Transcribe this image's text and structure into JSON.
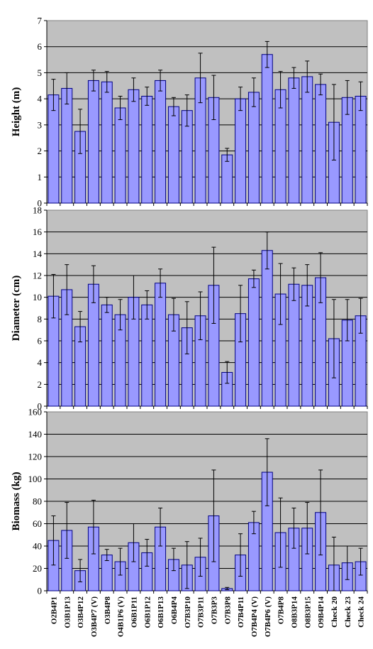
{
  "chart_data": {
    "type": "bar",
    "categories": [
      "O2B4P1",
      "O3B1P13",
      "O3B4P12",
      "O3B4P7 (V)",
      "O3B4P8",
      "O4B1P6 (V)",
      "O6B1P11",
      "O6B1P12",
      "O6B1P13",
      "O6B4P4",
      "O7B3P10",
      "O7B3P11",
      "O7B3P3",
      "O7B3P8",
      "O7B4P11",
      "O7B4P4 (V)",
      "O7B4P6 (V)",
      "O7B4P8",
      "O8B3P14",
      "O8B3P15",
      "O9B4P14",
      "Check 20",
      "Check 23",
      "Check 24"
    ],
    "panels": [
      {
        "ylabel": "Height (m)",
        "ylim": [
          0,
          7
        ],
        "yticks": [
          "0",
          "1",
          "2",
          "3",
          "4",
          "5",
          "6",
          "7"
        ],
        "grid": true,
        "values": [
          4.15,
          4.4,
          2.75,
          4.7,
          4.65,
          3.65,
          4.35,
          4.1,
          4.7,
          3.7,
          3.55,
          4.8,
          4.05,
          1.85,
          4.0,
          4.25,
          5.7,
          4.35,
          4.8,
          4.85,
          4.55,
          3.1,
          4.05,
          4.1
        ],
        "errors": [
          0.6,
          0.6,
          0.85,
          0.4,
          0.4,
          0.45,
          0.45,
          0.35,
          0.4,
          0.35,
          0.6,
          0.95,
          0.85,
          0.25,
          0.45,
          0.55,
          0.5,
          0.7,
          0.4,
          0.6,
          0.4,
          1.45,
          0.65,
          0.55
        ]
      },
      {
        "ylabel": "Diameter (cm)",
        "ylim": [
          0,
          18
        ],
        "yticks": [
          "0",
          "2",
          "4",
          "6",
          "8",
          "10",
          "12",
          "14",
          "16",
          "18"
        ],
        "grid": true,
        "values": [
          10.1,
          10.7,
          7.3,
          11.2,
          9.3,
          8.4,
          10.0,
          9.3,
          11.3,
          8.4,
          7.2,
          8.3,
          11.1,
          3.1,
          8.5,
          11.7,
          14.3,
          10.3,
          11.2,
          11.1,
          11.8,
          6.2,
          7.9,
          8.3
        ],
        "errors": [
          2.0,
          2.3,
          1.4,
          1.7,
          0.7,
          1.4,
          2.0,
          1.3,
          1.3,
          1.5,
          2.4,
          2.2,
          3.5,
          1.0,
          2.6,
          0.8,
          1.7,
          2.8,
          1.5,
          1.9,
          2.3,
          3.6,
          1.9,
          1.6
        ]
      },
      {
        "ylabel": "Biomass (kg)",
        "ylim": [
          0,
          160
        ],
        "yticks": [
          "0",
          "20",
          "40",
          "60",
          "80",
          "100",
          "120",
          "140",
          "160"
        ],
        "grid": true,
        "values": [
          45,
          54,
          18,
          57,
          32,
          26,
          43,
          34,
          57,
          28,
          23,
          30,
          67,
          2,
          32,
          61,
          106,
          52,
          56,
          56,
          70,
          23,
          25,
          26
        ],
        "errors": [
          22,
          25,
          10,
          24,
          5,
          12,
          17,
          12,
          17,
          10,
          21,
          17,
          41,
          1,
          19,
          10,
          30,
          31,
          18,
          23,
          38,
          25,
          15,
          12
        ]
      }
    ]
  }
}
